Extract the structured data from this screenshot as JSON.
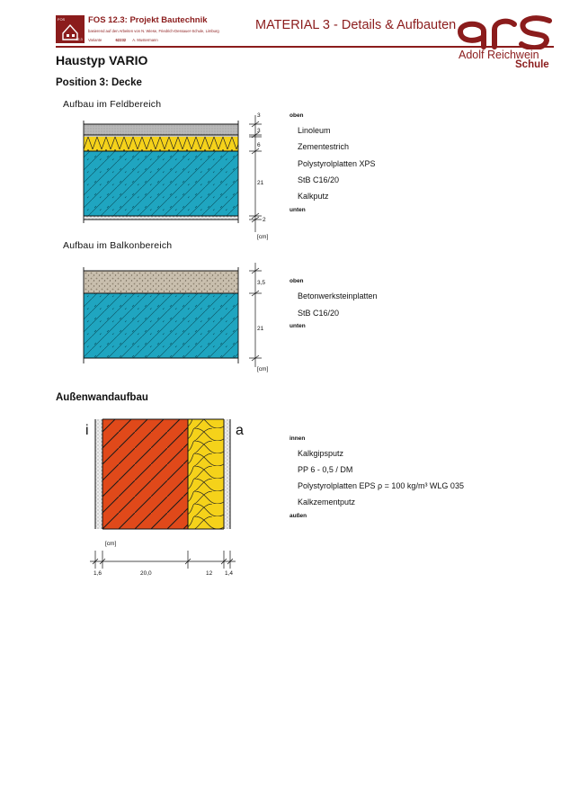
{
  "header": {
    "course": "FOS 12.3: Projekt Bautechnik",
    "subtitle": "basierend auf den Arbeiten von N. Wiese, Friedrich-Dessauer-Schule, Limburg",
    "variant_label": "Variante",
    "variant_value": "62232",
    "author": "A. Mustermann",
    "material": "MATERIAL 3 - Details & Aufbauten",
    "logo_lines": [
      "FOS",
      "12.3"
    ],
    "brand_name": "Adolf Reichwein",
    "brand_school": "Schule",
    "brand_color": "#8b1c1c"
  },
  "page": {
    "title": "Haustyp VARIO",
    "position": "Position 3: Decke",
    "wall_heading": "Außenwandaufbau"
  },
  "feld": {
    "heading": "Aufbau im Feldbereich",
    "dims": [
      "3",
      "3",
      "6",
      "21",
      "2"
    ],
    "unit": "[cm]",
    "top": "oben",
    "bottom": "unten",
    "layers": [
      "Linoleum",
      "Zementestrich",
      "Polystyrolplatten XPS",
      "StB C16/20",
      "Kalkputz"
    ]
  },
  "balkon": {
    "heading": "Aufbau im Balkonbereich",
    "dims": [
      "3,5",
      "21"
    ],
    "unit": "[cm]",
    "top": "oben",
    "bottom": "unten",
    "layers": [
      "Betonwerksteinplatten",
      "StB C16/20"
    ]
  },
  "wall": {
    "inner_mark": "i",
    "outer_mark": "a",
    "unit": "[cm]",
    "dims": [
      "1,6",
      "20,0",
      "12",
      "1,4"
    ],
    "top": "innen",
    "bottom": "außen",
    "layers": [
      "Kalkgipsputz",
      "PP 6 - 0,5 / DM",
      "Polystyrolplatten EPS ρ = 100 kg/m³ WLG 035",
      "Kalkzementputz"
    ]
  },
  "colors": {
    "concrete": "#1fa5c0",
    "insulation": "#f5d21a",
    "masonry": "#e0491a",
    "linoleum": "#b9b9b9",
    "stone": "#c9bfae"
  }
}
